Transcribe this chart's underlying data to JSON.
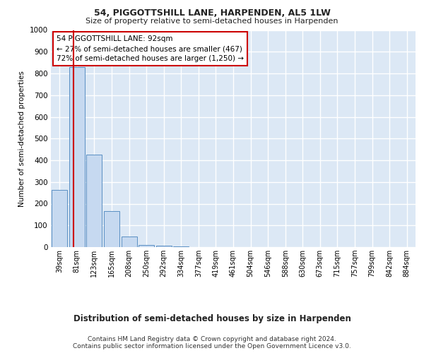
{
  "title1": "54, PIGGOTTSHILL LANE, HARPENDEN, AL5 1LW",
  "title2": "Size of property relative to semi-detached houses in Harpenden",
  "xlabel": "Distribution of semi-detached houses by size in Harpenden",
  "ylabel": "Number of semi-detached properties",
  "categories": [
    "39sqm",
    "81sqm",
    "123sqm",
    "165sqm",
    "208sqm",
    "250sqm",
    "292sqm",
    "334sqm",
    "377sqm",
    "419sqm",
    "461sqm",
    "504sqm",
    "546sqm",
    "588sqm",
    "630sqm",
    "673sqm",
    "715sqm",
    "757sqm",
    "799sqm",
    "842sqm",
    "884sqm"
  ],
  "values": [
    265,
    830,
    425,
    165,
    50,
    10,
    5,
    2,
    0,
    0,
    0,
    0,
    0,
    0,
    0,
    0,
    0,
    0,
    0,
    0,
    0
  ],
  "bar_color": "#c6d9f0",
  "bar_edge_color": "#5a8fc3",
  "grid_color": "#d0d8e8",
  "background_color": "#dce8f5",
  "annotation_box_color": "#cc0000",
  "property_line_color": "#cc0000",
  "property_label": "54 PIGGOTTSHILL LANE: 92sqm",
  "pct_smaller": 27,
  "pct_larger": 72,
  "n_smaller": 467,
  "n_larger": 1250,
  "ylim": [
    0,
    1000
  ],
  "yticks": [
    0,
    100,
    200,
    300,
    400,
    500,
    600,
    700,
    800,
    900,
    1000
  ],
  "footnote1": "Contains HM Land Registry data © Crown copyright and database right 2024.",
  "footnote2": "Contains public sector information licensed under the Open Government Licence v3.0."
}
